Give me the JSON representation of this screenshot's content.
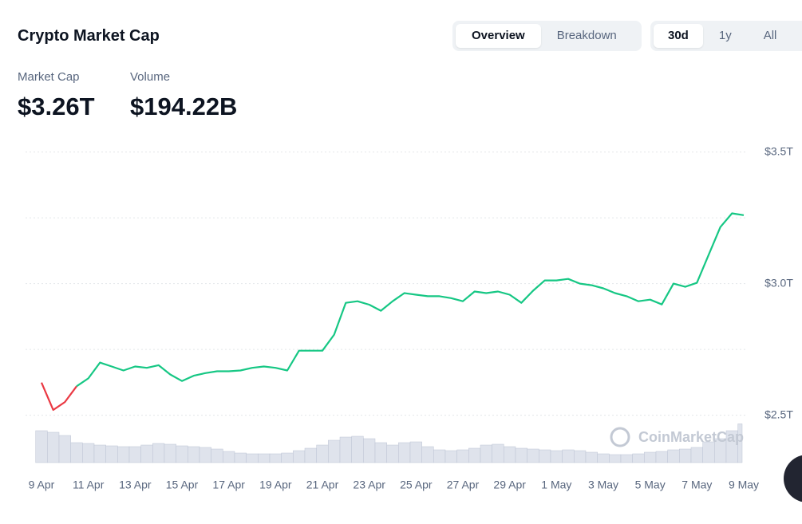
{
  "header": {
    "title": "Crypto Market Cap",
    "tabs": [
      "Overview",
      "Breakdown"
    ],
    "ranges": [
      "30d",
      "1y",
      "All"
    ]
  },
  "stats": [
    {
      "label": "Market Cap",
      "value": "$3.26T"
    },
    {
      "label": "Volume",
      "value": "$194.22B"
    }
  ],
  "chart_data": {
    "type": "line",
    "watermark": "CoinMarketCap",
    "categories": [
      "9 Apr",
      null,
      null,
      null,
      "11 Apr",
      null,
      null,
      null,
      "13 Apr",
      null,
      null,
      null,
      "15 Apr",
      null,
      null,
      null,
      "17 Apr",
      null,
      null,
      null,
      "19 Apr",
      null,
      null,
      null,
      "21 Apr",
      null,
      null,
      null,
      "23 Apr",
      null,
      null,
      null,
      "25 Apr",
      null,
      null,
      null,
      "27 Apr",
      null,
      null,
      null,
      "29 Apr",
      null,
      null,
      null,
      "1 May",
      null,
      null,
      null,
      "3 May",
      null,
      null,
      null,
      "5 May",
      null,
      null,
      null,
      "7 May",
      null,
      null,
      null,
      "9 May"
    ],
    "series": [
      {
        "color": "#16c784",
        "down_color": "#ea3943",
        "values": [
          2.624,
          2.52,
          2.55,
          2.61,
          2.64,
          2.7,
          2.685,
          2.67,
          2.685,
          2.68,
          2.69,
          2.655,
          2.63,
          2.65,
          2.66,
          2.667,
          2.667,
          2.67,
          2.68,
          2.685,
          2.68,
          2.67,
          2.745,
          2.745,
          2.745,
          2.806,
          2.927,
          2.933,
          2.92,
          2.897,
          2.933,
          2.964,
          2.958,
          2.952,
          2.952,
          2.945,
          2.933,
          2.97,
          2.964,
          2.97,
          2.958,
          2.927,
          2.973,
          3.012,
          3.012,
          3.018,
          3.0,
          2.994,
          2.982,
          2.964,
          2.952,
          2.933,
          2.939,
          2.921,
          3.0,
          2.988,
          3.003,
          3.109,
          3.215,
          3.267,
          3.26
        ]
      }
    ],
    "volume": {
      "color": "#dfe3ec",
      "edge_color": "#bcc3d3",
      "lim": [
        0,
        200
      ],
      "values": [
        160,
        152,
        136,
        100,
        96,
        88,
        84,
        80,
        80,
        88,
        96,
        92,
        84,
        80,
        76,
        68,
        56,
        48,
        44,
        44,
        44,
        48,
        60,
        72,
        88,
        112,
        128,
        132,
        120,
        100,
        88,
        100,
        104,
        80,
        64,
        60,
        64,
        72,
        88,
        92,
        80,
        72,
        68,
        64,
        60,
        64,
        60,
        52,
        44,
        40,
        40,
        44,
        52,
        56,
        64,
        68,
        76,
        104,
        120,
        160,
        194.22
      ]
    },
    "ylim": [
      2.32,
      3.52
    ],
    "yticks": [
      {
        "value": 2.5,
        "label": "$2.5T"
      },
      {
        "value": 3.0,
        "label": "$3.0T"
      },
      {
        "value": 3.5,
        "label": "$3.5T"
      }
    ],
    "minor_gridlines": [
      2.75,
      3.25
    ],
    "grid": true
  }
}
